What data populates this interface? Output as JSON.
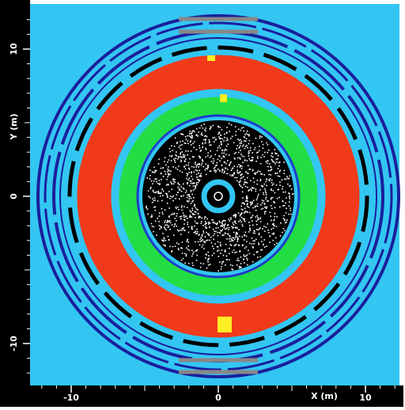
{
  "x_axis": {
    "label": "X (m)",
    "ticks": [
      -10,
      0,
      10
    ]
  },
  "y_axis": {
    "label": "Y (m)",
    "ticks": [
      10,
      0,
      -10
    ]
  }
}
